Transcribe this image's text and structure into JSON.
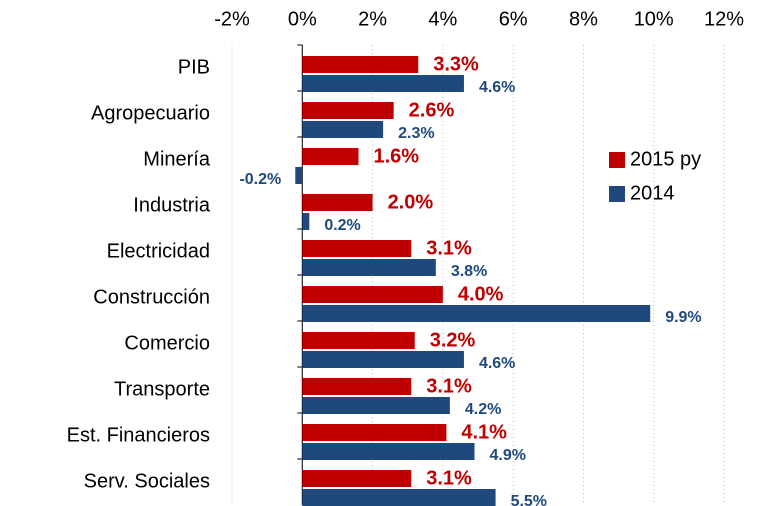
{
  "chart_data": {
    "type": "bar",
    "orientation": "horizontal",
    "categories": [
      "PIB",
      "Agropecuario",
      "Minería",
      "Industria",
      "Electricidad",
      "Construcción",
      "Comercio",
      "Transporte",
      "Est. Financieros",
      "Serv. Sociales"
    ],
    "series": [
      {
        "name": "2015 py",
        "color": "#c00000",
        "values": [
          3.3,
          2.6,
          1.6,
          2.0,
          3.1,
          4.0,
          3.2,
          3.1,
          4.1,
          3.1
        ],
        "value_labels": [
          "3.3%",
          "2.6%",
          "1.6%",
          "2.0%",
          "3.1%",
          "4.0%",
          "3.2%",
          "3.1%",
          "4.1%",
          "3.1%"
        ]
      },
      {
        "name": "2014",
        "color": "#1f497d",
        "values": [
          4.6,
          2.3,
          -0.2,
          0.2,
          3.8,
          9.9,
          4.6,
          4.2,
          4.9,
          5.5
        ],
        "value_labels": [
          "4.6%",
          "2.3%",
          "-0.2%",
          "0.2%",
          "3.8%",
          "9.9%",
          "4.6%",
          "4.2%",
          "4.9%",
          "5.5%"
        ]
      }
    ],
    "xlim": [
      -2,
      12
    ],
    "xticks": [
      {
        "value": -2,
        "label": "-2%"
      },
      {
        "value": 0,
        "label": "0%"
      },
      {
        "value": 2,
        "label": "2%"
      },
      {
        "value": 4,
        "label": "4%"
      },
      {
        "value": 6,
        "label": "6%"
      },
      {
        "value": 8,
        "label": "8%"
      },
      {
        "value": 10,
        "label": "10%"
      },
      {
        "value": 12,
        "label": "12%"
      }
    ],
    "grid": true,
    "legend": "right"
  }
}
